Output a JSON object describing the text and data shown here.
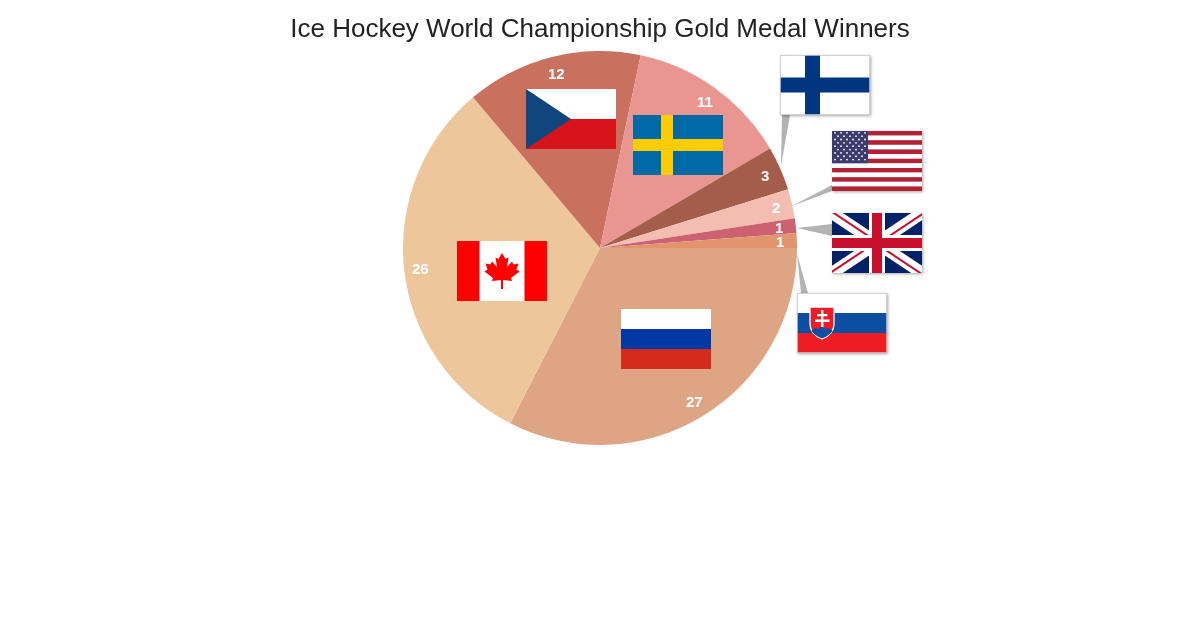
{
  "chart_data": {
    "type": "pie",
    "title": "Ice Hockey World Championship Gold Medal Winners",
    "categories": [
      null,
      null,
      null,
      null,
      null,
      null,
      null,
      null
    ],
    "values": [
      27,
      26,
      12,
      11,
      3,
      2,
      1,
      1
    ],
    "colors": [
      "#dea584",
      "#eec69c",
      "#c9705e",
      "#ea9690",
      "#a55d4b",
      "#f3bdb2",
      "#cb6171",
      "#e2956d"
    ],
    "data_labels": true
  }
}
